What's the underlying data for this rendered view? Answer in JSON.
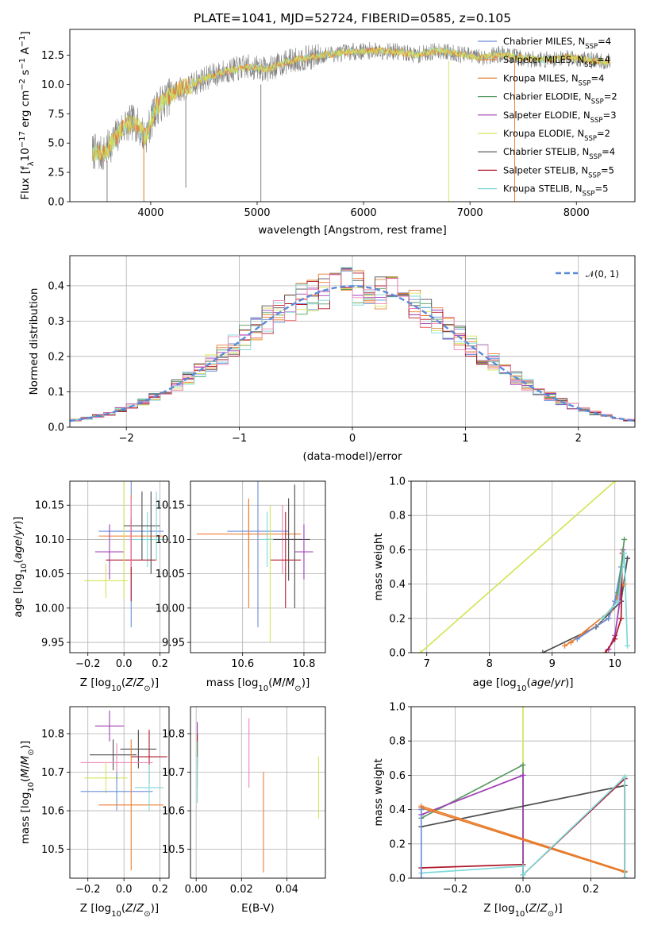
{
  "figure": {
    "title": "PLATE=1041, MJD=52724, FIBERID=0585, z=0.105",
    "legend": [
      {
        "label": "Chabrier MILES, N",
        "sub": "SSP",
        "tail": "=4",
        "color": "#6a8ed8"
      },
      {
        "label": "Salpeter MILES, N",
        "sub": "SSP",
        "tail": "=4",
        "color": "#f07e2e"
      },
      {
        "label": "Kroupa MILES, N",
        "sub": "SSP",
        "tail": "=4",
        "color": "#e07b2f"
      },
      {
        "label": "Chabrier ELODIE, N",
        "sub": "SSP",
        "tail": "=2",
        "color": "#5a9a62"
      },
      {
        "label": "Salpeter ELODIE, N",
        "sub": "SSP",
        "tail": "=3",
        "color": "#a03db5"
      },
      {
        "label": "Kroupa ELODIE, N",
        "sub": "SSP",
        "tail": "=2",
        "color": "#d6e45a"
      },
      {
        "label": "Chabrier STELIB, N",
        "sub": "SSP",
        "tail": "=4",
        "color": "#4d4d4d"
      },
      {
        "label": "Salpeter STELIB, N",
        "sub": "SSP",
        "tail": "=5",
        "color": "#b0182a"
      },
      {
        "label": "Kroupa STELIB, N",
        "sub": "SSP",
        "tail": "=5",
        "color": "#7fd8d8"
      }
    ],
    "extra_colors": {
      "pink": "#ee82b8",
      "data": "#808080",
      "normal": "#5a8ad8"
    }
  },
  "chart_data": [
    {
      "type": "line",
      "id": "spectrum",
      "xlabel": "wavelength [Angstrom, rest frame]",
      "ylabel": "Flux [f_λ10^-17 erg cm^-2 s^-1 A^-1]",
      "xlim": [
        3240,
        8550
      ],
      "ylim": [
        0,
        14.7
      ],
      "xticks": [
        4000,
        5000,
        6000,
        7000,
        8000
      ],
      "yticks": [
        0.0,
        2.5,
        5.0,
        7.5,
        10.0,
        12.5
      ],
      "ytick_labels": [
        "0.0",
        "2.5",
        "5.0",
        "7.5",
        "10.0",
        "12.5"
      ],
      "continuum_x": [
        3450,
        3550,
        3650,
        3750,
        3850,
        3950,
        4050,
        4150,
        4250,
        4350,
        4500,
        4700,
        4900,
        5100,
        5300,
        5500,
        5700,
        5900,
        6100,
        6300,
        6500,
        6700,
        6900,
        7100,
        7300,
        7500,
        7700,
        7900,
        8100,
        8320
      ],
      "continuum_y": [
        4.3,
        4.0,
        5.2,
        6.5,
        6.8,
        5.5,
        8.0,
        8.8,
        9.5,
        9.8,
        10.5,
        11.1,
        11.5,
        11.3,
        12.0,
        12.3,
        12.6,
        12.8,
        12.9,
        12.8,
        12.5,
        12.9,
        12.6,
        12.3,
        12.6,
        12.2,
        12.1,
        12.3,
        12.1,
        11.9
      ],
      "grid": false,
      "legend_position": "upper right"
    },
    {
      "type": "line",
      "id": "residuals",
      "xlabel": "(data-model)/error",
      "ylabel": "Normed distribution",
      "xlim": [
        -2.5,
        2.5
      ],
      "ylim": [
        0,
        0.485
      ],
      "xticks": [
        -2,
        -1,
        0,
        1,
        2
      ],
      "xtick_labels": [
        "−2",
        "−1",
        "0",
        "1",
        "2"
      ],
      "yticks": [
        0.0,
        0.1,
        0.2,
        0.3,
        0.4
      ],
      "ytick_labels": [
        "0.0",
        "0.1",
        "0.2",
        "0.3",
        "0.4"
      ],
      "normal_label": "𝒩(0, 1)",
      "grid": true,
      "legend_position": "upper right"
    },
    {
      "type": "scatter",
      "id": "age-vs-Z",
      "xlabel": "Z [log10(Z/Z⊙)]",
      "ylabel": "age  [log10(age/yr)]",
      "xlim": [
        -0.3,
        0.25
      ],
      "ylim": [
        9.935,
        10.185
      ],
      "xticks": [
        -0.2,
        0.0,
        0.2
      ],
      "xtick_labels": [
        "−0.2",
        "0.0",
        "0.2"
      ],
      "yticks": [
        9.95,
        10.0,
        10.05,
        10.1,
        10.15
      ],
      "ytick_labels": [
        "9.95",
        "10.00",
        "10.05",
        "10.10",
        "10.15"
      ],
      "points": [
        {
          "x": 0.04,
          "xerr": 0.18,
          "y": 10.112,
          "yerr": 0.14,
          "color": "#6a8ed8"
        },
        {
          "x": 0.04,
          "xerr": 0.18,
          "y": 10.105,
          "yerr": 0.06,
          "color": "#f07e2e"
        },
        {
          "x": 0.13,
          "xerr": 0.08,
          "y": 10.1,
          "yerr": 0.04,
          "color": "#7fd8d8"
        },
        {
          "x": -0.08,
          "xerr": 0.08,
          "y": 10.082,
          "yerr": 0.04,
          "color": "#a03db5"
        },
        {
          "x": 0.04,
          "xerr": 0.14,
          "y": 10.07,
          "yerr": 0.06,
          "color": "#b0182a"
        },
        {
          "x": -0.1,
          "xerr": 0.12,
          "y": 10.04,
          "yerr": 0.025,
          "color": "#d6e45a"
        },
        {
          "x": 0.0,
          "xerr": 0.0,
          "y": 10.1,
          "yerr": 0.085,
          "color": "#d6e45a"
        },
        {
          "x": 0.1,
          "xerr": 0.1,
          "y": 10.12,
          "yerr": 0.05,
          "color": "#4d4d4d"
        },
        {
          "x": 0.15,
          "xerr": 0.0,
          "y": 10.11,
          "yerr": 0.06,
          "color": "#4d4d4d"
        },
        {
          "x": 0.04,
          "xerr": 0.0,
          "y": 10.11,
          "yerr": 0.05,
          "color": "#ee82b8"
        },
        {
          "x": 0.18,
          "xerr": 0.0,
          "y": 10.12,
          "yerr": 0.05,
          "color": "#7fd8d8"
        }
      ],
      "grid": true
    },
    {
      "type": "scatter",
      "id": "age-vs-mass",
      "xlabel": "mass [log10(M/M⊙)]",
      "ylabel": "",
      "xlim": [
        10.43,
        10.87
      ],
      "ylim": [
        9.935,
        10.185
      ],
      "xticks": [
        10.6,
        10.8
      ],
      "xtick_labels": [
        "10.6",
        "10.8"
      ],
      "yticks": [
        9.95,
        10.0,
        10.05,
        10.1,
        10.15
      ],
      "ytick_labels": [
        "9.95",
        "10.00",
        "10.05",
        "10.10",
        "10.15"
      ],
      "points": [
        {
          "x": 10.65,
          "xerr": 0.1,
          "y": 10.112,
          "yerr": 0.14,
          "color": "#6a8ed8"
        },
        {
          "x": 10.62,
          "xerr": 0.17,
          "y": 10.108,
          "yerr": 0.05,
          "color": "#f07e2e"
        },
        {
          "x": 10.73,
          "xerr": 0.06,
          "y": 10.1,
          "yerr": 0.05,
          "color": "#ee82b8"
        },
        {
          "x": 10.75,
          "xerr": 0.07,
          "y": 10.1,
          "yerr": 0.06,
          "color": "#4d4d4d"
        },
        {
          "x": 10.8,
          "xerr": 0.03,
          "y": 10.082,
          "yerr": 0.04,
          "color": "#a03db5"
        },
        {
          "x": 10.74,
          "xerr": 0.05,
          "y": 10.07,
          "yerr": 0.07,
          "color": "#b0182a"
        },
        {
          "x": 10.68,
          "xerr": 0.02,
          "y": 10.1,
          "yerr": 0.04,
          "color": "#7fd8d8"
        },
        {
          "x": 10.69,
          "xerr": 0.0,
          "y": 10.05,
          "yerr": 0.1,
          "color": "#d6e45a"
        },
        {
          "x": 10.77,
          "xerr": 0.0,
          "y": 10.09,
          "yerr": 0.09,
          "color": "#4d4d4d"
        },
        {
          "x": 10.62,
          "xerr": 0.0,
          "y": 10.08,
          "yerr": 0.08,
          "color": "#f07e2e"
        }
      ],
      "grid": true
    },
    {
      "type": "line",
      "id": "mass-weight-vs-age",
      "xlabel": "age  [log10(age/yr)]",
      "ylabel": "mass weight",
      "xlim": [
        6.75,
        10.32
      ],
      "ylim": [
        0,
        1.0
      ],
      "xticks": [
        7,
        8,
        9,
        10
      ],
      "yticks": [
        0.0,
        0.2,
        0.4,
        0.6,
        0.8,
        1.0
      ],
      "ytick_labels": [
        "0.0",
        "0.2",
        "0.4",
        "0.6",
        "0.8",
        "1.0"
      ],
      "series": [
        {
          "color": "#d6e45a",
          "x": [
            6.9,
            10.0
          ],
          "y": [
            0.0,
            1.0
          ]
        },
        {
          "color": "#4d4d4d",
          "x": [
            8.85,
            9.7,
            10.1,
            10.2
          ],
          "y": [
            0.0,
            0.15,
            0.3,
            0.55
          ]
        },
        {
          "color": "#f07e2e",
          "x": [
            9.2,
            9.9,
            10.05,
            10.15
          ],
          "y": [
            0.04,
            0.2,
            0.35,
            0.4
          ]
        },
        {
          "color": "#e07b2f",
          "x": [
            9.3,
            9.95,
            10.08
          ],
          "y": [
            0.06,
            0.25,
            0.35
          ]
        },
        {
          "color": "#6a8ed8",
          "x": [
            9.4,
            9.9,
            10.0,
            10.1
          ],
          "y": [
            0.08,
            0.2,
            0.3,
            0.5
          ]
        },
        {
          "color": "#a03db5",
          "x": [
            9.9,
            10.0,
            10.08,
            10.13
          ],
          "y": [
            0.02,
            0.1,
            0.3,
            0.6
          ]
        },
        {
          "color": "#b0182a",
          "x": [
            9.85,
            10.0,
            10.1,
            10.12
          ],
          "y": [
            0.0,
            0.08,
            0.2,
            0.58
          ]
        },
        {
          "color": "#5a9a62",
          "x": [
            10.05,
            10.15
          ],
          "y": [
            0.35,
            0.66
          ]
        },
        {
          "color": "#7fd8d8",
          "x": [
            9.8,
            10.05,
            10.15,
            10.2
          ],
          "y": [
            0.2,
            0.3,
            0.58,
            0.04
          ]
        }
      ],
      "grid": true
    },
    {
      "type": "scatter",
      "id": "mass-vs-Z",
      "xlabel": "Z [log10(Z/Z⊙)]",
      "ylabel": "mass [log10(M/M⊙)]",
      "xlim": [
        -0.3,
        0.25
      ],
      "ylim": [
        10.425,
        10.87
      ],
      "xticks": [
        -0.2,
        0.0,
        0.2
      ],
      "xtick_labels": [
        "−0.2",
        "0.0",
        "0.2"
      ],
      "yticks": [
        10.5,
        10.6,
        10.7,
        10.8
      ],
      "ytick_labels": [
        "10.5",
        "10.6",
        "10.7",
        "10.8"
      ],
      "points": [
        {
          "x": -0.08,
          "xerr": 0.08,
          "y": 10.82,
          "yerr": 0.04,
          "color": "#a03db5"
        },
        {
          "x": 0.14,
          "xerr": 0.1,
          "y": 10.74,
          "yerr": 0.07,
          "color": "#b0182a"
        },
        {
          "x": 0.08,
          "xerr": 0.1,
          "y": 10.76,
          "yerr": 0.05,
          "color": "#4d4d4d"
        },
        {
          "x": -0.06,
          "xerr": 0.13,
          "y": 10.745,
          "yerr": 0.04,
          "color": "#4d4d4d"
        },
        {
          "x": -0.04,
          "xerr": 0.2,
          "y": 10.725,
          "yerr": 0.05,
          "color": "#ee82b8"
        },
        {
          "x": -0.1,
          "xerr": 0.12,
          "y": 10.685,
          "yerr": 0.04,
          "color": "#d6e45a"
        },
        {
          "x": -0.04,
          "xerr": 0.2,
          "y": 10.65,
          "yerr": 0.05,
          "color": "#6a8ed8"
        },
        {
          "x": 0.04,
          "xerr": 0.18,
          "y": 10.615,
          "yerr": 0.17,
          "color": "#f07e2e"
        },
        {
          "x": 0.14,
          "xerr": 0.08,
          "y": 10.66,
          "yerr": 0.06,
          "color": "#7fd8d8"
        }
      ],
      "grid": true
    },
    {
      "type": "scatter",
      "id": "mass-vs-ebv",
      "xlabel": "E(B-V)",
      "ylabel": "",
      "xlim": [
        -0.0025,
        0.057
      ],
      "ylim": [
        10.425,
        10.87
      ],
      "xticks": [
        0.0,
        0.02,
        0.04
      ],
      "xtick_labels": [
        "0.00",
        "0.02",
        "0.04"
      ],
      "yticks": [
        10.5,
        10.6,
        10.7,
        10.8
      ],
      "ytick_labels": [
        "10.5",
        "10.6",
        "10.7",
        "10.8"
      ],
      "points": [
        {
          "x": 0.0005,
          "xerr": 0.0,
          "y": 10.77,
          "yerr": 0.06,
          "color": "#a03db5"
        },
        {
          "x": 0.0005,
          "xerr": 0.0,
          "y": 10.76,
          "yerr": 0.04,
          "color": "#b0182a"
        },
        {
          "x": 0.0005,
          "xerr": 0.0,
          "y": 10.72,
          "yerr": 0.06,
          "color": "#5a9a62"
        },
        {
          "x": 0.0005,
          "xerr": 0.0,
          "y": 10.68,
          "yerr": 0.06,
          "color": "#7fd8d8"
        },
        {
          "x": 0.0233,
          "xerr": 0.0,
          "y": 10.75,
          "yerr": 0.09,
          "color": "#ee82b8"
        },
        {
          "x": 0.0297,
          "xerr": 0.0,
          "y": 10.57,
          "yerr": 0.13,
          "color": "#f07e2e"
        },
        {
          "x": 0.054,
          "xerr": 0.0,
          "y": 10.66,
          "yerr": 0.08,
          "color": "#d6e45a"
        }
      ],
      "grid": true
    },
    {
      "type": "line",
      "id": "mass-weight-vs-Z",
      "xlabel": "Z [log10(Z/Z⊙)]",
      "ylabel": "mass weight",
      "xlim": [
        -0.33,
        0.33
      ],
      "ylim": [
        0,
        1.0
      ],
      "xticks": [
        -0.2,
        0.0,
        0.2
      ],
      "xtick_labels": [
        "−0.2",
        "0.0",
        "0.2"
      ],
      "yticks": [
        0.0,
        0.2,
        0.4,
        0.6,
        0.8,
        1.0
      ],
      "ytick_labels": [
        "0.0",
        "0.2",
        "0.4",
        "0.6",
        "0.8",
        "1.0"
      ],
      "series": [
        {
          "color": "#d6e45a",
          "x": [
            0.0,
            0.0
          ],
          "y": [
            0.0,
            1.0
          ]
        },
        {
          "color": "#5a9a62",
          "x": [
            -0.3,
            0.0,
            0.0
          ],
          "y": [
            0.35,
            0.66,
            0.0
          ]
        },
        {
          "color": "#a03db5",
          "x": [
            -0.3,
            0.0,
            0.0
          ],
          "y": [
            0.37,
            0.6,
            0.02
          ]
        },
        {
          "color": "#4d4d4d",
          "x": [
            -0.3,
            0.3,
            0.3
          ],
          "y": [
            0.3,
            0.54,
            0.0
          ]
        },
        {
          "color": "#f07e2e",
          "x": [
            -0.3,
            0.3
          ],
          "y": [
            0.42,
            0.04
          ]
        },
        {
          "color": "#e07b2f",
          "x": [
            -0.3,
            0.3
          ],
          "y": [
            0.41,
            0.035
          ]
        },
        {
          "color": "#b0182a",
          "x": [
            -0.3,
            0.0,
            0.0,
            0.3,
            0.3
          ],
          "y": [
            0.06,
            0.08,
            0.02,
            0.58,
            0.0
          ]
        },
        {
          "color": "#7fd8d8",
          "x": [
            -0.3,
            0.0,
            0.0,
            0.3,
            0.3
          ],
          "y": [
            0.03,
            0.07,
            0.02,
            0.59,
            0.0
          ]
        },
        {
          "color": "#6a8ed8",
          "x": [
            -0.3,
            -0.3
          ],
          "y": [
            0.0,
            0.4
          ]
        }
      ],
      "grid": true
    }
  ]
}
